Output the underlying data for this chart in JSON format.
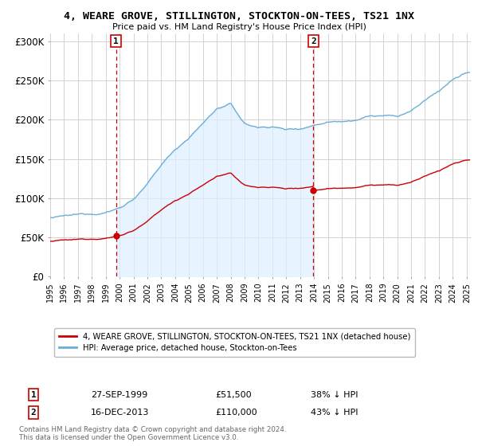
{
  "title": "4, WEARE GROVE, STILLINGTON, STOCKTON-ON-TEES, TS21 1NX",
  "subtitle": "Price paid vs. HM Land Registry's House Price Index (HPI)",
  "legend_line1": "4, WEARE GROVE, STILLINGTON, STOCKTON-ON-TEES, TS21 1NX (detached house)",
  "legend_line2": "HPI: Average price, detached house, Stockton-on-Tees",
  "transaction1_label": "1",
  "transaction1_date": "27-SEP-1999",
  "transaction1_price": "£51,500",
  "transaction1_hpi": "38% ↓ HPI",
  "transaction2_label": "2",
  "transaction2_date": "16-DEC-2013",
  "transaction2_price": "£110,000",
  "transaction2_hpi": "43% ↓ HPI",
  "footnote": "Contains HM Land Registry data © Crown copyright and database right 2024.\nThis data is licensed under the Open Government Licence v3.0.",
  "hpi_color": "#6baed6",
  "hpi_fill_color": "#ddeeff",
  "price_color": "#cc0000",
  "marker_color": "#cc0000",
  "vline_color": "#cc0000",
  "ylim": [
    0,
    310000
  ],
  "yticks": [
    0,
    50000,
    100000,
    150000,
    200000,
    250000,
    300000
  ],
  "ytick_labels": [
    "£0",
    "£50K",
    "£100K",
    "£150K",
    "£200K",
    "£250K",
    "£300K"
  ],
  "transaction1_x": 1999.74,
  "transaction1_y": 51500,
  "transaction2_x": 2013.96,
  "transaction2_y": 110000,
  "xmin": 1995,
  "xmax": 2025.3,
  "background_color": "#ffffff",
  "grid_color": "#cccccc"
}
